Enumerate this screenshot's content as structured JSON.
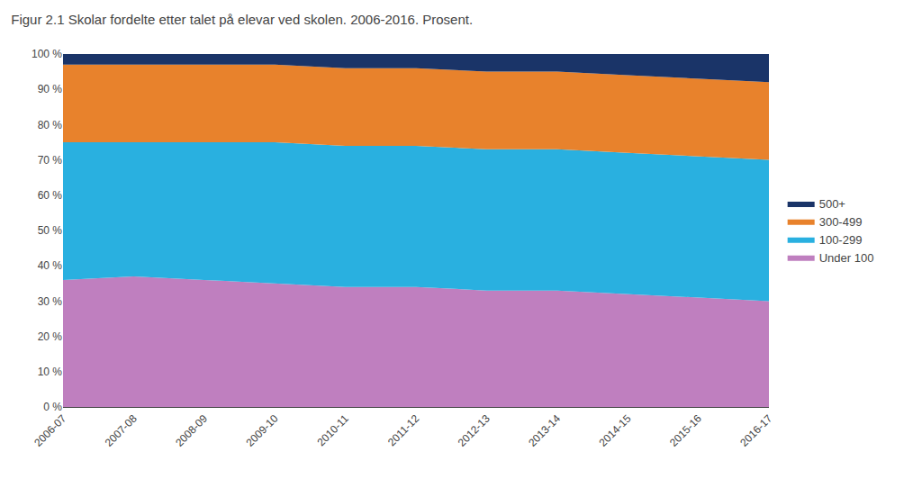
{
  "chart_data": {
    "type": "area",
    "title": "Figur 2.1 Skolar fordelte etter talet på elevar ved skolen. 2006-2016. Prosent.",
    "categories": [
      "2006-07",
      "2007-08",
      "2008-09",
      "2009-10",
      "2010-11",
      "2011-12",
      "2012-13",
      "2013-14",
      "2014-15",
      "2015-16",
      "2016-17"
    ],
    "series": [
      {
        "name": "Under 100",
        "color": "#bf7fbf",
        "values": [
          36,
          37,
          36,
          35,
          34,
          34,
          33,
          33,
          32,
          31,
          30
        ]
      },
      {
        "name": "100-299",
        "color": "#29b0e0",
        "values": [
          39,
          38,
          39,
          40,
          40,
          40,
          40,
          40,
          40,
          40,
          40
        ]
      },
      {
        "name": "300-499",
        "color": "#e8822c",
        "values": [
          22,
          22,
          22,
          22,
          22,
          22,
          22,
          22,
          22,
          22,
          22
        ]
      },
      {
        "name": "500+",
        "color": "#1a3468",
        "values": [
          3,
          3,
          3,
          3,
          4,
          4,
          5,
          5,
          6,
          7,
          8
        ]
      }
    ],
    "stacked": true,
    "ylim": [
      0,
      100
    ],
    "yticks": [
      {
        "value": 0,
        "label": "0 %"
      },
      {
        "value": 10,
        "label": "10 %"
      },
      {
        "value": 20,
        "label": "20 %"
      },
      {
        "value": 30,
        "label": "30 %"
      },
      {
        "value": 40,
        "label": "40 %"
      },
      {
        "value": 50,
        "label": "50 %"
      },
      {
        "value": 60,
        "label": "60 %"
      },
      {
        "value": 70,
        "label": "70 %"
      },
      {
        "value": 80,
        "label": "80 %"
      },
      {
        "value": 90,
        "label": "90 %"
      },
      {
        "value": 100,
        "label": "100 %"
      }
    ],
    "grid": true,
    "legend": "right"
  }
}
